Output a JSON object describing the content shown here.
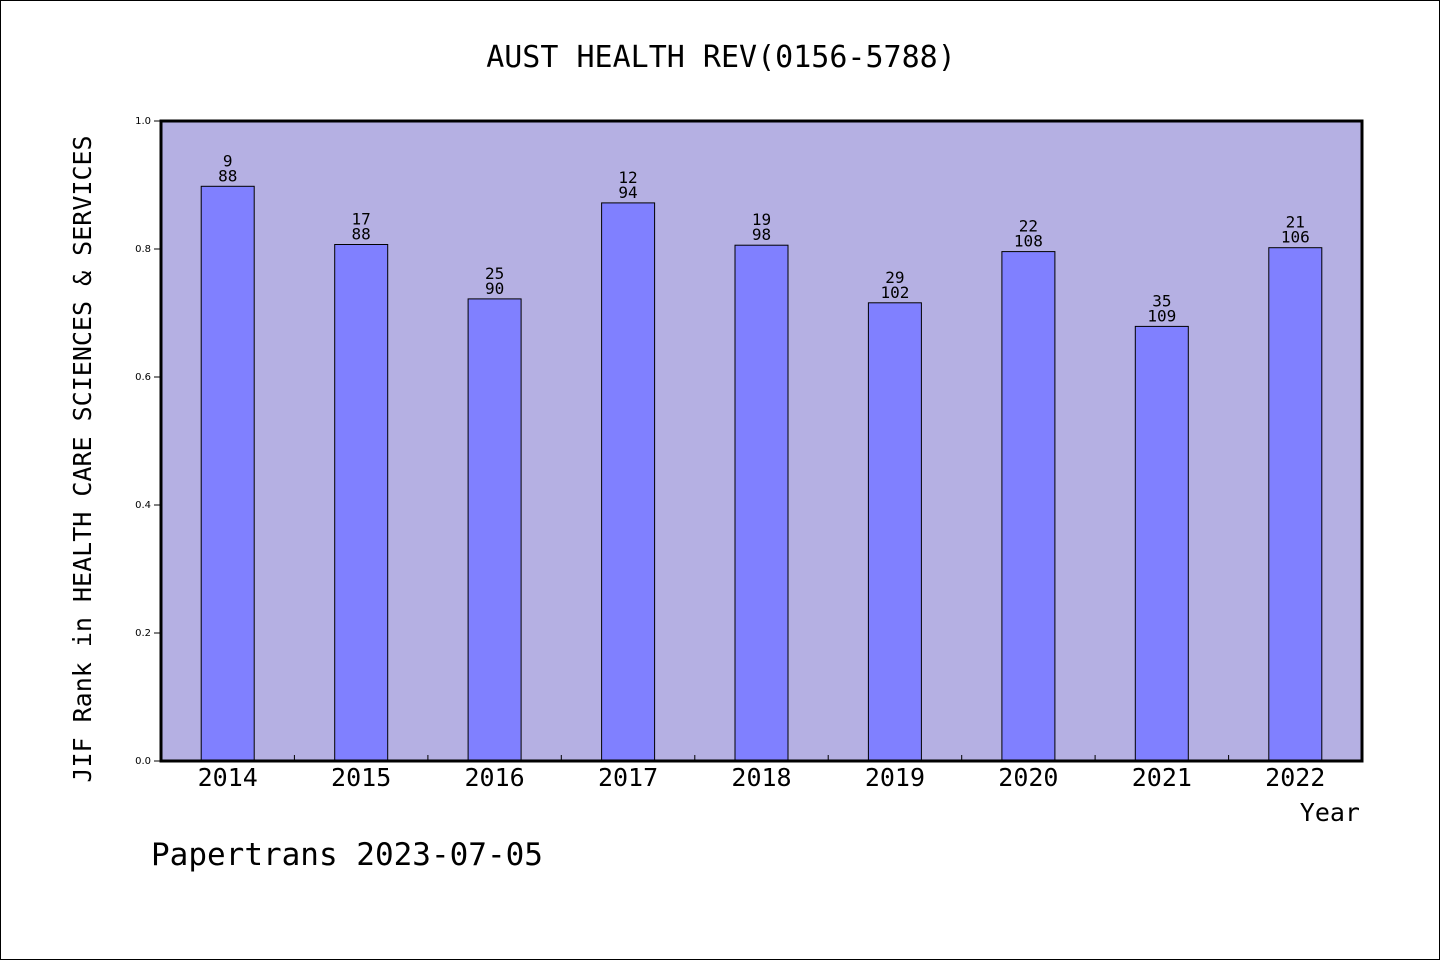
{
  "chart_data": {
    "type": "bar",
    "title": "AUST HEALTH REV(0156-5788)",
    "xlabel": "Year",
    "ylabel": "JIF Rank in HEALTH CARE SCIENCES & SERVICES",
    "categories": [
      "2014",
      "2015",
      "2016",
      "2017",
      "2018",
      "2019",
      "2020",
      "2021",
      "2022"
    ],
    "values": [
      0.898,
      0.807,
      0.722,
      0.872,
      0.806,
      0.716,
      0.796,
      0.679,
      0.802
    ],
    "bar_labels": [
      {
        "rank": "9",
        "total": "88"
      },
      {
        "rank": "17",
        "total": "88"
      },
      {
        "rank": "25",
        "total": "90"
      },
      {
        "rank": "12",
        "total": "94"
      },
      {
        "rank": "19",
        "total": "98"
      },
      {
        "rank": "29",
        "total": "102"
      },
      {
        "rank": "22",
        "total": "108"
      },
      {
        "rank": "35",
        "total": "109"
      },
      {
        "rank": "21",
        "total": "106"
      }
    ],
    "ylim": [
      0,
      1.0
    ],
    "yticks": [
      "0.0",
      "0.2",
      "0.4",
      "0.6",
      "0.8",
      "1.0"
    ],
    "grid": false,
    "colors": {
      "plot_background": "#b5b0e3",
      "bar_fill": "#8080ff",
      "bar_stroke": "#000000"
    }
  },
  "footer": {
    "source": "Papertrans 2023-07-05"
  }
}
